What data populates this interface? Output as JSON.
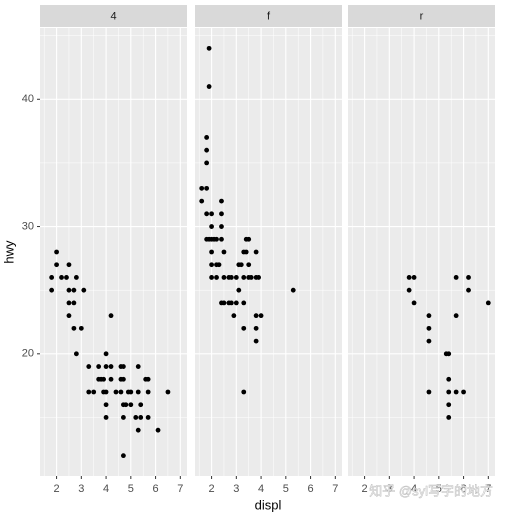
{
  "chart_data": {
    "type": "scatter",
    "x_label": "displ",
    "y_label": "hwy",
    "color": "#000000",
    "xlim": [
      1.33,
      7.27
    ],
    "ylim": [
      10.4,
      45.6
    ],
    "xticks": [
      2,
      3,
      4,
      5,
      6,
      7
    ],
    "yticks": [
      20,
      30,
      40
    ],
    "grid": true,
    "facets": [
      {
        "label": "4",
        "x": [
          1.8,
          1.8,
          2.0,
          2.0,
          2.2,
          2.4,
          2.5,
          2.5,
          2.5,
          2.5,
          2.7,
          2.7,
          2.7,
          2.8,
          2.8,
          3.0,
          3.1,
          3.3,
          3.3,
          3.5,
          3.7,
          3.7,
          3.9,
          3.9,
          4.0,
          4.0,
          4.0,
          4.0,
          4.2,
          4.2,
          4.2,
          4.4,
          4.6,
          4.6,
          4.7,
          4.7,
          4.7,
          4.7,
          4.7,
          4.8,
          5.0,
          5.2,
          5.3,
          5.3,
          5.3,
          5.4,
          5.4,
          5.6,
          5.7,
          5.7,
          5.7,
          6.1,
          6.5,
          4.6,
          4.9,
          5.0,
          4.0,
          3.8
        ],
        "y": [
          26,
          25,
          28,
          27,
          26,
          26,
          27,
          25,
          24,
          23,
          25,
          24,
          22,
          20,
          26,
          22,
          25,
          17,
          19,
          17,
          19,
          18,
          17,
          18,
          20,
          19,
          17,
          15,
          23,
          19,
          18,
          17,
          19,
          17,
          16,
          15,
          19,
          18,
          12,
          16,
          17,
          15,
          17,
          19,
          14,
          16,
          15,
          18,
          17,
          15,
          18,
          14,
          17,
          18,
          17,
          16,
          16,
          18
        ]
      },
      {
        "label": "f",
        "x": [
          1.6,
          1.6,
          1.8,
          1.8,
          1.8,
          1.8,
          1.8,
          1.8,
          1.9,
          1.9,
          1.9,
          2.0,
          2.0,
          2.0,
          2.0,
          2.0,
          2.0,
          2.2,
          2.2,
          2.2,
          2.4,
          2.4,
          2.4,
          2.4,
          2.4,
          2.5,
          2.5,
          2.5,
          2.7,
          2.7,
          2.8,
          2.8,
          3.0,
          3.0,
          3.1,
          3.1,
          3.3,
          3.3,
          3.3,
          3.3,
          3.3,
          3.4,
          3.4,
          3.5,
          3.5,
          3.5,
          3.6,
          3.8,
          3.8,
          3.8,
          3.8,
          3.8,
          3.9,
          4.0,
          5.3,
          2.9,
          3.2,
          2.3,
          2.1
        ],
        "y": [
          32,
          33,
          29,
          31,
          33,
          35,
          36,
          37,
          44,
          41,
          29,
          28,
          29,
          30,
          31,
          26,
          27,
          26,
          29,
          27,
          24,
          29,
          30,
          31,
          32,
          28,
          26,
          24,
          24,
          26,
          26,
          24,
          26,
          24,
          27,
          25,
          22,
          17,
          24,
          26,
          28,
          29,
          28,
          29,
          26,
          27,
          26,
          26,
          28,
          21,
          22,
          23,
          26,
          23,
          25,
          23,
          27,
          27,
          29
        ]
      },
      {
        "label": "r",
        "x": [
          3.8,
          3.8,
          4.0,
          4.0,
          4.6,
          4.6,
          4.6,
          4.6,
          5.3,
          5.4,
          5.4,
          5.4,
          5.4,
          5.4,
          5.7,
          5.7,
          5.7,
          6.0,
          6.2,
          6.2,
          7.0
        ],
        "y": [
          26,
          25,
          26,
          24,
          23,
          22,
          21,
          17,
          20,
          20,
          15,
          17,
          18,
          16,
          26,
          23,
          17,
          17,
          26,
          25,
          24
        ]
      }
    ],
    "watermark": "知乎 @syl写字的地方"
  }
}
